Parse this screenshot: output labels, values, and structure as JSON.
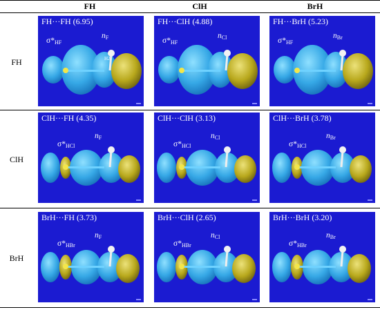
{
  "columns": [
    "FH",
    "ClH",
    "BrH"
  ],
  "rows": [
    "FH",
    "ClH",
    "BrH"
  ],
  "colors": {
    "panel_bg": "#1b1bd1",
    "lobe_cyan": "#36a8e6",
    "lobe_yellow": "#b8a81c"
  },
  "panels": [
    {
      "title": "FH···FH (6.95)",
      "sigma_sub": "HF",
      "n_sub": "F",
      "tag": "H2"
    },
    {
      "title": "FH···ClH (4.88)",
      "sigma_sub": "HF",
      "n_sub": "Cl",
      "tag": ""
    },
    {
      "title": "FH···BrH (5.23)",
      "sigma_sub": "HF",
      "n_sub": "Br",
      "tag": ""
    },
    {
      "title": "ClH···FH (4.35)",
      "sigma_sub": "HCl",
      "n_sub": "F",
      "tag": ""
    },
    {
      "title": "ClH···ClH (3.13)",
      "sigma_sub": "HCl",
      "n_sub": "Cl",
      "tag": ""
    },
    {
      "title": "ClH···BrH (3.78)",
      "sigma_sub": "HCl",
      "n_sub": "Br",
      "tag": ""
    },
    {
      "title": "BrH···FH (3.73)",
      "sigma_sub": "HBr",
      "n_sub": "F",
      "tag": ""
    },
    {
      "title": "BrH···ClH (2.65)",
      "sigma_sub": "HBr",
      "n_sub": "Cl",
      "tag": ""
    },
    {
      "title": "BrH···BrH (3.20)",
      "sigma_sub": "HBr",
      "n_sub": "Br",
      "tag": ""
    }
  ],
  "labels": {
    "sigma_star": "σ*",
    "n": "n"
  }
}
